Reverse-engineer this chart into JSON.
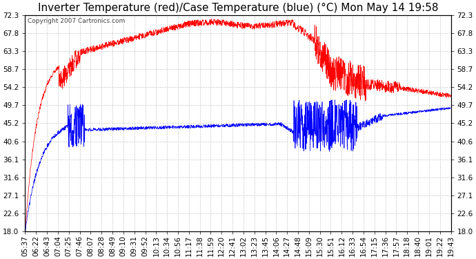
{
  "title": "Inverter Temperature (red)/Case Temperature (blue) (°C) Mon May 14 19:58",
  "copyright": "Copyright 2007 Cartronics.com",
  "background_color": "#ffffff",
  "plot_bg_color": "#ffffff",
  "grid_color": "#c8c8c8",
  "y_ticks": [
    18.0,
    22.6,
    27.1,
    31.6,
    36.1,
    40.6,
    45.2,
    49.7,
    54.2,
    58.7,
    63.3,
    67.8,
    72.3
  ],
  "x_labels": [
    "05:37",
    "06:22",
    "06:43",
    "07:04",
    "07:25",
    "07:46",
    "08:07",
    "08:28",
    "08:49",
    "09:10",
    "09:31",
    "09:52",
    "10:13",
    "10:34",
    "10:56",
    "11:17",
    "11:38",
    "11:59",
    "12:20",
    "12:41",
    "13:02",
    "13:23",
    "13:45",
    "14:06",
    "14:27",
    "14:48",
    "15:09",
    "15:30",
    "15:51",
    "16:12",
    "16:33",
    "16:54",
    "17:15",
    "17:36",
    "17:57",
    "18:18",
    "18:40",
    "19:01",
    "19:22",
    "19:43"
  ],
  "red_color": "#ff0000",
  "blue_color": "#0000ff",
  "title_fontsize": 11,
  "tick_fontsize": 7.5
}
